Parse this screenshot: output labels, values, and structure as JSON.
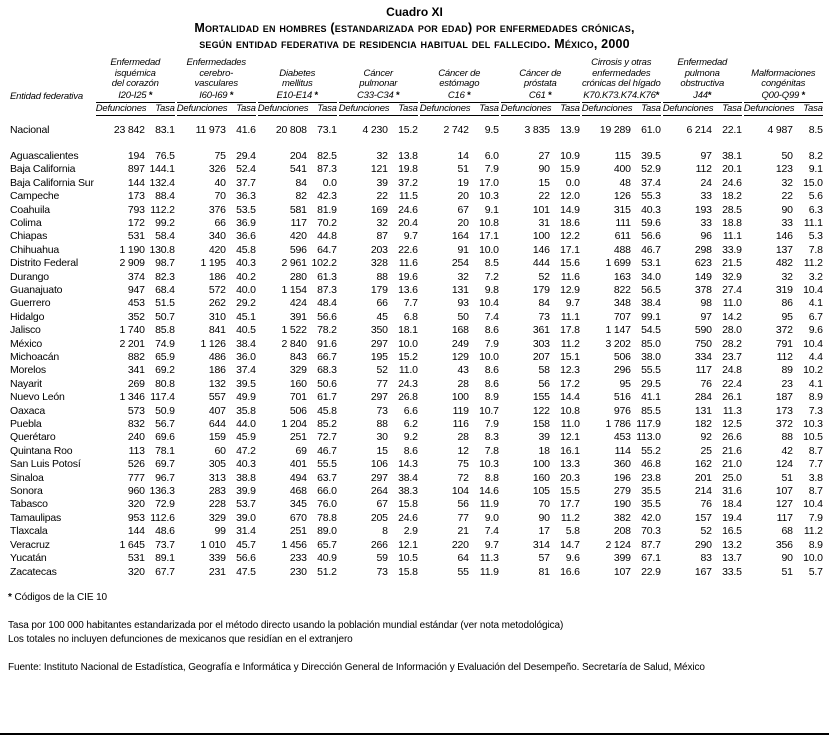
{
  "page": {
    "title_label": "Cuadro XI",
    "title_line1": "Mortalidad en hombres (estandarizada por edad) por enfermedades crónicas,",
    "title_line2": "según entidad federativa de residencia habitual del fallecido. México, 2000"
  },
  "table": {
    "row_header": "Entidad federativa",
    "subcolumns": [
      "Defunciones",
      "Tasa"
    ],
    "groups": [
      {
        "title_lines": [
          "Enfermedad",
          "isquémica",
          "del corazón"
        ],
        "code": "I20-I25",
        "code_suffix": " *"
      },
      {
        "title_lines": [
          "Enfermedades",
          "cerebro-",
          "vasculares"
        ],
        "code": "I60-I69",
        "code_suffix": " *"
      },
      {
        "title_lines": [
          "Diabetes",
          "mellitus"
        ],
        "code": "E10-E14",
        "code_suffix": " *"
      },
      {
        "title_lines": [
          "Cáncer",
          "pulmonar"
        ],
        "code": "C33-C34",
        "code_suffix": " *"
      },
      {
        "title_lines": [
          "Cáncer de",
          "estómago"
        ],
        "code": "C16",
        "code_suffix": " *"
      },
      {
        "title_lines": [
          "Cáncer de",
          "próstata"
        ],
        "code": "C61",
        "code_suffix": " *"
      },
      {
        "title_lines": [
          "Cirrosis y otras",
          "enfermedades",
          "crónicas del hígado"
        ],
        "code": "K70.K73.K74.K76",
        "code_suffix": "*"
      },
      {
        "title_lines": [
          "Enfermedad",
          "pulmona",
          "obstructiva"
        ],
        "code": "J44",
        "code_suffix": "*"
      },
      {
        "title_lines": [
          "Malformaciones",
          "congénitas"
        ],
        "code": "Q00-Q99",
        "code_suffix": " *"
      }
    ],
    "national_row": {
      "entidad": "Nacional",
      "values": [
        "23 842",
        "83.1",
        "11 973",
        "41.6",
        "20 808",
        "73.1",
        "4 230",
        "15.2",
        "2 742",
        "9.5",
        "3 835",
        "13.9",
        "19 289",
        "61.0",
        "6 214",
        "22.1",
        "4 987",
        "8.5"
      ]
    },
    "rows": [
      {
        "entidad": "Aguascalientes",
        "values": [
          "194",
          "76.5",
          "75",
          "29.4",
          "204",
          "82.5",
          "32",
          "13.8",
          "14",
          "6.0",
          "27",
          "10.9",
          "115",
          "39.5",
          "97",
          "38.1",
          "50",
          "8.2"
        ]
      },
      {
        "entidad": "Baja California",
        "values": [
          "897",
          "144.1",
          "326",
          "52.4",
          "541",
          "87.3",
          "121",
          "19.8",
          "51",
          "7.9",
          "90",
          "15.9",
          "400",
          "52.9",
          "112",
          "20.1",
          "123",
          "9.1"
        ]
      },
      {
        "entidad": "Baja California Sur",
        "values": [
          "144",
          "132.4",
          "40",
          "37.7",
          "84",
          "0.0",
          "39",
          "37.2",
          "19",
          "17.0",
          "15",
          "0.0",
          "48",
          "37.4",
          "24",
          "24.6",
          "32",
          "15.0"
        ]
      },
      {
        "entidad": "Campeche",
        "values": [
          "173",
          "88.4",
          "70",
          "36.3",
          "82",
          "42.3",
          "22",
          "11.5",
          "20",
          "10.3",
          "22",
          "12.0",
          "126",
          "55.3",
          "33",
          "18.2",
          "22",
          "5.6"
        ]
      },
      {
        "entidad": "Coahuila",
        "values": [
          "793",
          "112.2",
          "376",
          "53.5",
          "581",
          "81.9",
          "169",
          "24.6",
          "67",
          "9.1",
          "101",
          "14.9",
          "315",
          "40.3",
          "193",
          "28.5",
          "90",
          "6.3"
        ]
      },
      {
        "entidad": "Colima",
        "values": [
          "172",
          "99.2",
          "66",
          "36.9",
          "117",
          "70.2",
          "32",
          "20.4",
          "20",
          "10.8",
          "31",
          "18.6",
          "111",
          "59.6",
          "33",
          "18.8",
          "33",
          "11.1"
        ]
      },
      {
        "entidad": "Chiapas",
        "values": [
          "531",
          "58.4",
          "340",
          "36.6",
          "420",
          "44.8",
          "87",
          "9.7",
          "164",
          "17.1",
          "100",
          "12.2",
          "611",
          "56.6",
          "96",
          "11.1",
          "146",
          "5.3"
        ]
      },
      {
        "entidad": "Chihuahua",
        "values": [
          "1 190",
          "130.8",
          "420",
          "45.8",
          "596",
          "64.7",
          "203",
          "22.6",
          "91",
          "10.0",
          "146",
          "17.1",
          "488",
          "46.7",
          "298",
          "33.9",
          "137",
          "7.8"
        ]
      },
      {
        "entidad": "Distrito Federal",
        "values": [
          "2 909",
          "98.7",
          "1 195",
          "40.3",
          "2 961",
          "102.2",
          "328",
          "11.6",
          "254",
          "8.5",
          "444",
          "15.6",
          "1 699",
          "53.1",
          "623",
          "21.5",
          "482",
          "11.2"
        ]
      },
      {
        "entidad": "Durango",
        "values": [
          "374",
          "82.3",
          "186",
          "40.2",
          "280",
          "61.3",
          "88",
          "19.6",
          "32",
          "7.2",
          "52",
          "11.6",
          "163",
          "34.0",
          "149",
          "32.9",
          "32",
          "3.2"
        ]
      },
      {
        "entidad": "Guanajuato",
        "values": [
          "947",
          "68.4",
          "572",
          "40.0",
          "1 154",
          "87.3",
          "179",
          "13.6",
          "131",
          "9.8",
          "179",
          "12.9",
          "822",
          "56.5",
          "378",
          "27.4",
          "319",
          "10.4"
        ]
      },
      {
        "entidad": "Guerrero",
        "values": [
          "453",
          "51.5",
          "262",
          "29.2",
          "424",
          "48.4",
          "66",
          "7.7",
          "93",
          "10.4",
          "84",
          "9.7",
          "348",
          "38.4",
          "98",
          "11.0",
          "86",
          "4.1"
        ]
      },
      {
        "entidad": "Hidalgo",
        "values": [
          "352",
          "50.7",
          "310",
          "45.1",
          "391",
          "56.6",
          "45",
          "6.8",
          "50",
          "7.4",
          "73",
          "11.1",
          "707",
          "99.1",
          "97",
          "14.2",
          "95",
          "6.7"
        ]
      },
      {
        "entidad": "Jalisco",
        "values": [
          "1 740",
          "85.8",
          "841",
          "40.5",
          "1 522",
          "78.2",
          "350",
          "18.1",
          "168",
          "8.6",
          "361",
          "17.8",
          "1 147",
          "54.5",
          "590",
          "28.0",
          "372",
          "9.6"
        ]
      },
      {
        "entidad": "México",
        "values": [
          "2 201",
          "74.9",
          "1 126",
          "38.4",
          "2 840",
          "91.6",
          "297",
          "10.0",
          "249",
          "7.9",
          "303",
          "11.2",
          "3 202",
          "85.0",
          "750",
          "28.2",
          "791",
          "10.4"
        ]
      },
      {
        "entidad": "Michoacán",
        "values": [
          "882",
          "65.9",
          "486",
          "36.0",
          "843",
          "66.7",
          "195",
          "15.2",
          "129",
          "10.0",
          "207",
          "15.1",
          "506",
          "38.0",
          "334",
          "23.7",
          "112",
          "4.4"
        ]
      },
      {
        "entidad": "Morelos",
        "values": [
          "341",
          "69.2",
          "186",
          "37.4",
          "329",
          "68.3",
          "52",
          "11.0",
          "43",
          "8.6",
          "58",
          "12.3",
          "296",
          "55.5",
          "117",
          "24.8",
          "89",
          "10.2"
        ]
      },
      {
        "entidad": "Nayarit",
        "values": [
          "269",
          "80.8",
          "132",
          "39.5",
          "160",
          "50.6",
          "77",
          "24.3",
          "28",
          "8.6",
          "56",
          "17.2",
          "95",
          "29.5",
          "76",
          "22.4",
          "23",
          "4.1"
        ]
      },
      {
        "entidad": "Nuevo León",
        "values": [
          "1 346",
          "117.4",
          "557",
          "49.9",
          "701",
          "61.7",
          "297",
          "26.8",
          "100",
          "8.9",
          "155",
          "14.4",
          "516",
          "41.1",
          "284",
          "26.1",
          "187",
          "8.9"
        ]
      },
      {
        "entidad": "Oaxaca",
        "values": [
          "573",
          "50.9",
          "407",
          "35.8",
          "506",
          "45.8",
          "73",
          "6.6",
          "119",
          "10.7",
          "122",
          "10.8",
          "976",
          "85.5",
          "131",
          "11.3",
          "173",
          "7.3"
        ]
      },
      {
        "entidad": "Puebla",
        "values": [
          "832",
          "56.7",
          "644",
          "44.0",
          "1 204",
          "85.2",
          "88",
          "6.2",
          "116",
          "7.9",
          "158",
          "11.0",
          "1 786",
          "117.9",
          "182",
          "12.5",
          "372",
          "10.3"
        ]
      },
      {
        "entidad": "Querétaro",
        "values": [
          "240",
          "69.6",
          "159",
          "45.9",
          "251",
          "72.7",
          "30",
          "9.2",
          "28",
          "8.3",
          "39",
          "12.1",
          "453",
          "113.0",
          "92",
          "26.6",
          "88",
          "10.5"
        ]
      },
      {
        "entidad": "Quintana Roo",
        "values": [
          "113",
          "78.1",
          "60",
          "47.2",
          "69",
          "46.7",
          "15",
          "8.6",
          "12",
          "7.8",
          "18",
          "16.1",
          "114",
          "55.2",
          "25",
          "21.6",
          "42",
          "8.7"
        ]
      },
      {
        "entidad": "San Luis Potosí",
        "values": [
          "526",
          "69.7",
          "305",
          "40.3",
          "401",
          "55.5",
          "106",
          "14.3",
          "75",
          "10.3",
          "100",
          "13.3",
          "360",
          "46.8",
          "162",
          "21.0",
          "124",
          "7.7"
        ]
      },
      {
        "entidad": "Sinaloa",
        "values": [
          "777",
          "96.7",
          "313",
          "38.8",
          "494",
          "63.7",
          "297",
          "38.4",
          "72",
          "8.8",
          "160",
          "20.3",
          "196",
          "23.8",
          "201",
          "25.0",
          "51",
          "3.8"
        ]
      },
      {
        "entidad": "Sonora",
        "values": [
          "960",
          "136.3",
          "283",
          "39.9",
          "468",
          "66.0",
          "264",
          "38.3",
          "104",
          "14.6",
          "105",
          "15.5",
          "279",
          "35.5",
          "214",
          "31.6",
          "107",
          "8.7"
        ]
      },
      {
        "entidad": "Tabasco",
        "values": [
          "320",
          "72.9",
          "228",
          "53.7",
          "345",
          "76.0",
          "67",
          "15.8",
          "56",
          "11.9",
          "70",
          "17.7",
          "190",
          "35.5",
          "76",
          "18.4",
          "127",
          "10.4"
        ]
      },
      {
        "entidad": "Tamaulipas",
        "values": [
          "953",
          "112.6",
          "329",
          "39.0",
          "670",
          "78.8",
          "205",
          "24.6",
          "77",
          "9.0",
          "90",
          "11.2",
          "382",
          "42.0",
          "157",
          "19.4",
          "117",
          "7.9"
        ]
      },
      {
        "entidad": "Tlaxcala",
        "values": [
          "144",
          "48.6",
          "99",
          "31.4",
          "251",
          "89.0",
          "8",
          "2.9",
          "21",
          "7.4",
          "17",
          "5.8",
          "208",
          "70.3",
          "52",
          "16.5",
          "68",
          "11.2"
        ]
      },
      {
        "entidad": "Veracruz",
        "values": [
          "1 645",
          "73.7",
          "1 010",
          "45.7",
          "1 456",
          "65.7",
          "266",
          "12.1",
          "220",
          "9.7",
          "314",
          "14.7",
          "2 124",
          "87.7",
          "290",
          "13.2",
          "356",
          "8.9"
        ]
      },
      {
        "entidad": "Yucatán",
        "values": [
          "531",
          "89.1",
          "339",
          "56.6",
          "233",
          "40.9",
          "59",
          "10.5",
          "64",
          "11.3",
          "57",
          "9.6",
          "399",
          "67.1",
          "83",
          "13.7",
          "90",
          "10.0"
        ]
      },
      {
        "entidad": "Zacatecas",
        "values": [
          "320",
          "67.7",
          "231",
          "47.5",
          "230",
          "51.2",
          "73",
          "15.8",
          "55",
          "11.9",
          "81",
          "16.6",
          "107",
          "22.9",
          "167",
          "33.5",
          "51",
          "5.7"
        ]
      }
    ]
  },
  "footnotes": {
    "cie_star": "*",
    "cie": "Códigos de la CIE 10",
    "note_tasa": "Tasa por 100 000 habitantes estandarizada por el método directo usando la población mundial estándar (ver nota metodológica)",
    "note_totales": "Los totales no incluyen defunciones de mexicanos que residían en el extranjero",
    "fuente": "Fuente: Instituto Nacional de Estadística, Geografía e Informática y Dirección General de Información y Evaluación del Desempeño. Secretaría de Salud, México"
  }
}
